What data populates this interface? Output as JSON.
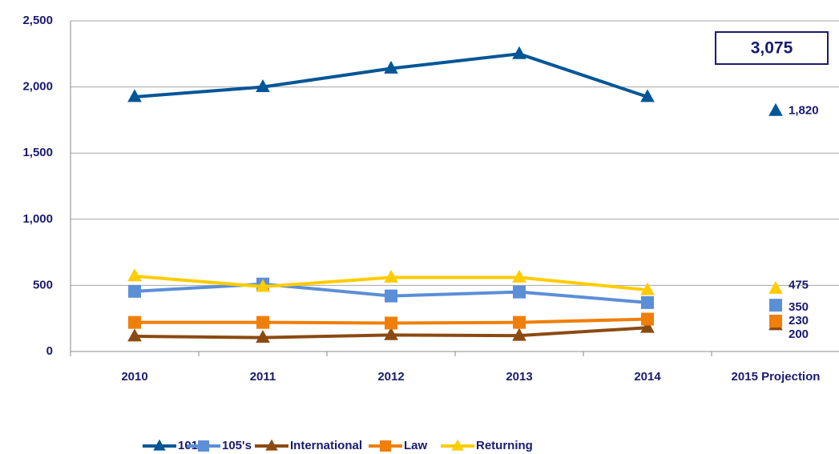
{
  "chart_data": {
    "type": "line",
    "categories": [
      "2010",
      "2011",
      "2012",
      "2013",
      "2014",
      "2015 Projection"
    ],
    "ylim": [
      0,
      2500
    ],
    "yticks": [
      0,
      500,
      {
        "value": 1000,
        "label": "1,000"
      },
      {
        "value": 1500,
        "label": "1,500"
      },
      {
        "value": 2000,
        "label": "2,000"
      },
      {
        "value": 2500,
        "label": "2,500"
      }
    ],
    "grid": true,
    "legend": "bottom",
    "annotation": "3,075",
    "series": [
      {
        "name": "101's",
        "color": "#005696",
        "marker": "triangle",
        "values": [
          1925,
          2000,
          2140,
          2250,
          1925,
          null
        ],
        "projection_value": 1820,
        "projection_label": "1,820"
      },
      {
        "name": "105's",
        "color": "#5b8fd6",
        "marker": "square",
        "values": [
          455,
          510,
          420,
          450,
          370,
          null
        ],
        "projection_value": 350
      },
      {
        "name": "International",
        "color": "#8b4a12",
        "marker": "triangle",
        "values": [
          115,
          105,
          125,
          120,
          180,
          null
        ],
        "projection_value": 200
      },
      {
        "name": "Law",
        "color": "#f07f09",
        "marker": "square",
        "values": [
          220,
          220,
          215,
          220,
          245,
          null
        ],
        "projection_value": 230
      },
      {
        "name": "Returning",
        "color": "#ffcc00",
        "marker": "triangle",
        "values": [
          570,
          490,
          560,
          560,
          465,
          null
        ],
        "projection_value": 475
      }
    ]
  }
}
